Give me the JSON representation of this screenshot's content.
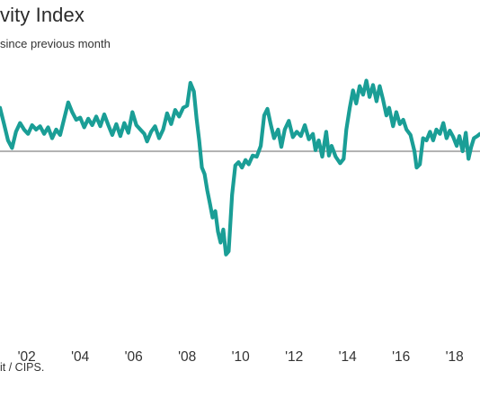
{
  "header": {
    "title": "vity Index",
    "subtitle": "since previous month"
  },
  "footer": {
    "source": "it / CIPS."
  },
  "colors": {
    "line": "#1a9e96",
    "baseline": "#9a9a9a",
    "text": "#333333"
  },
  "chart_data": {
    "type": "line",
    "title": "vity Index",
    "subtitle": "since previous month",
    "xlabel": "",
    "ylabel": "",
    "x_ticks": [
      "'02",
      "'04",
      "'06",
      "'08",
      "'10",
      "'12",
      "'14",
      "'16",
      "'18"
    ],
    "baseline": 50,
    "ylim": [
      36,
      59
    ],
    "xlim": [
      2001.0,
      2018.95
    ],
    "grid": false,
    "legend": "none",
    "series": [
      {
        "values": [
          [
            2001.0,
            54.0
          ],
          [
            2001.15,
            52.5
          ],
          [
            2001.3,
            51.0
          ],
          [
            2001.45,
            50.3
          ],
          [
            2001.6,
            51.8
          ],
          [
            2001.75,
            52.6
          ],
          [
            2001.9,
            52.0
          ],
          [
            2002.05,
            51.6
          ],
          [
            2002.2,
            52.4
          ],
          [
            2002.35,
            52.0
          ],
          [
            2002.5,
            52.3
          ],
          [
            2002.65,
            51.6
          ],
          [
            2002.8,
            52.2
          ],
          [
            2002.95,
            51.2
          ],
          [
            2003.1,
            52.0
          ],
          [
            2003.25,
            51.5
          ],
          [
            2003.4,
            53.0
          ],
          [
            2003.55,
            54.5
          ],
          [
            2003.7,
            53.6
          ],
          [
            2003.85,
            52.9
          ],
          [
            2004.0,
            53.1
          ],
          [
            2004.15,
            52.2
          ],
          [
            2004.3,
            53.0
          ],
          [
            2004.45,
            52.4
          ],
          [
            2004.6,
            53.2
          ],
          [
            2004.75,
            52.3
          ],
          [
            2004.9,
            53.4
          ],
          [
            2005.05,
            52.4
          ],
          [
            2005.2,
            51.5
          ],
          [
            2005.35,
            52.5
          ],
          [
            2005.5,
            51.4
          ],
          [
            2005.65,
            52.6
          ],
          [
            2005.8,
            51.7
          ],
          [
            2005.95,
            53.6
          ],
          [
            2006.1,
            52.4
          ],
          [
            2006.25,
            52.0
          ],
          [
            2006.4,
            51.6
          ],
          [
            2006.5,
            50.9
          ],
          [
            2006.65,
            51.8
          ],
          [
            2006.8,
            52.3
          ],
          [
            2006.95,
            51.2
          ],
          [
            2007.1,
            52.0
          ],
          [
            2007.25,
            53.5
          ],
          [
            2007.4,
            52.5
          ],
          [
            2007.55,
            53.8
          ],
          [
            2007.7,
            53.2
          ],
          [
            2007.85,
            54.0
          ],
          [
            2008.0,
            54.2
          ],
          [
            2008.12,
            56.3
          ],
          [
            2008.25,
            55.5
          ],
          [
            2008.35,
            53.0
          ],
          [
            2008.45,
            51.0
          ],
          [
            2008.55,
            48.5
          ],
          [
            2008.65,
            47.9
          ],
          [
            2008.75,
            46.4
          ],
          [
            2008.85,
            45.2
          ],
          [
            2008.95,
            43.9
          ],
          [
            2009.05,
            44.5
          ],
          [
            2009.15,
            42.6
          ],
          [
            2009.25,
            41.6
          ],
          [
            2009.35,
            42.8
          ],
          [
            2009.45,
            40.5
          ],
          [
            2009.55,
            40.8
          ],
          [
            2009.68,
            46.0
          ],
          [
            2009.8,
            48.7
          ],
          [
            2009.92,
            49.0
          ],
          [
            2010.05,
            48.5
          ],
          [
            2010.18,
            49.2
          ],
          [
            2010.3,
            48.8
          ],
          [
            2010.45,
            49.6
          ],
          [
            2010.6,
            49.5
          ],
          [
            2010.75,
            50.5
          ],
          [
            2010.88,
            53.3
          ],
          [
            2011.0,
            53.9
          ],
          [
            2011.12,
            52.5
          ],
          [
            2011.25,
            51.2
          ],
          [
            2011.4,
            52.0
          ],
          [
            2011.52,
            50.4
          ],
          [
            2011.65,
            52.0
          ],
          [
            2011.8,
            52.8
          ],
          [
            2011.95,
            51.3
          ],
          [
            2012.1,
            51.8
          ],
          [
            2012.25,
            51.4
          ],
          [
            2012.4,
            52.4
          ],
          [
            2012.55,
            51.1
          ],
          [
            2012.7,
            51.6
          ],
          [
            2012.8,
            50.1
          ],
          [
            2012.92,
            51.0
          ],
          [
            2013.05,
            49.5
          ],
          [
            2013.2,
            51.8
          ],
          [
            2013.3,
            49.6
          ],
          [
            2013.4,
            50.5
          ],
          [
            2013.55,
            49.5
          ],
          [
            2013.72,
            48.9
          ],
          [
            2013.85,
            49.3
          ],
          [
            2013.95,
            52.0
          ],
          [
            2014.08,
            54.0
          ],
          [
            2014.2,
            55.6
          ],
          [
            2014.32,
            54.4
          ],
          [
            2014.45,
            56.0
          ],
          [
            2014.58,
            55.2
          ],
          [
            2014.7,
            56.5
          ],
          [
            2014.82,
            55.0
          ],
          [
            2014.95,
            56.1
          ],
          [
            2015.08,
            54.6
          ],
          [
            2015.2,
            56.0
          ],
          [
            2015.32,
            54.8
          ],
          [
            2015.45,
            53.3
          ],
          [
            2015.55,
            54.0
          ],
          [
            2015.7,
            52.3
          ],
          [
            2015.82,
            53.6
          ],
          [
            2015.95,
            52.5
          ],
          [
            2016.08,
            52.9
          ],
          [
            2016.2,
            52.0
          ],
          [
            2016.35,
            51.5
          ],
          [
            2016.5,
            50.0
          ],
          [
            2016.58,
            48.5
          ],
          [
            2016.7,
            48.8
          ],
          [
            2016.82,
            51.2
          ],
          [
            2016.95,
            51.0
          ],
          [
            2017.08,
            51.8
          ],
          [
            2017.2,
            51.0
          ],
          [
            2017.32,
            52.0
          ],
          [
            2017.45,
            51.6
          ],
          [
            2017.58,
            52.6
          ],
          [
            2017.7,
            51.2
          ],
          [
            2017.82,
            51.9
          ],
          [
            2017.95,
            51.3
          ],
          [
            2018.08,
            50.5
          ],
          [
            2018.18,
            51.4
          ],
          [
            2018.3,
            50.0
          ],
          [
            2018.42,
            51.7
          ],
          [
            2018.52,
            49.3
          ],
          [
            2018.62,
            50.4
          ],
          [
            2018.72,
            51.2
          ],
          [
            2018.85,
            51.4
          ],
          [
            2018.95,
            51.6
          ]
        ]
      }
    ]
  }
}
